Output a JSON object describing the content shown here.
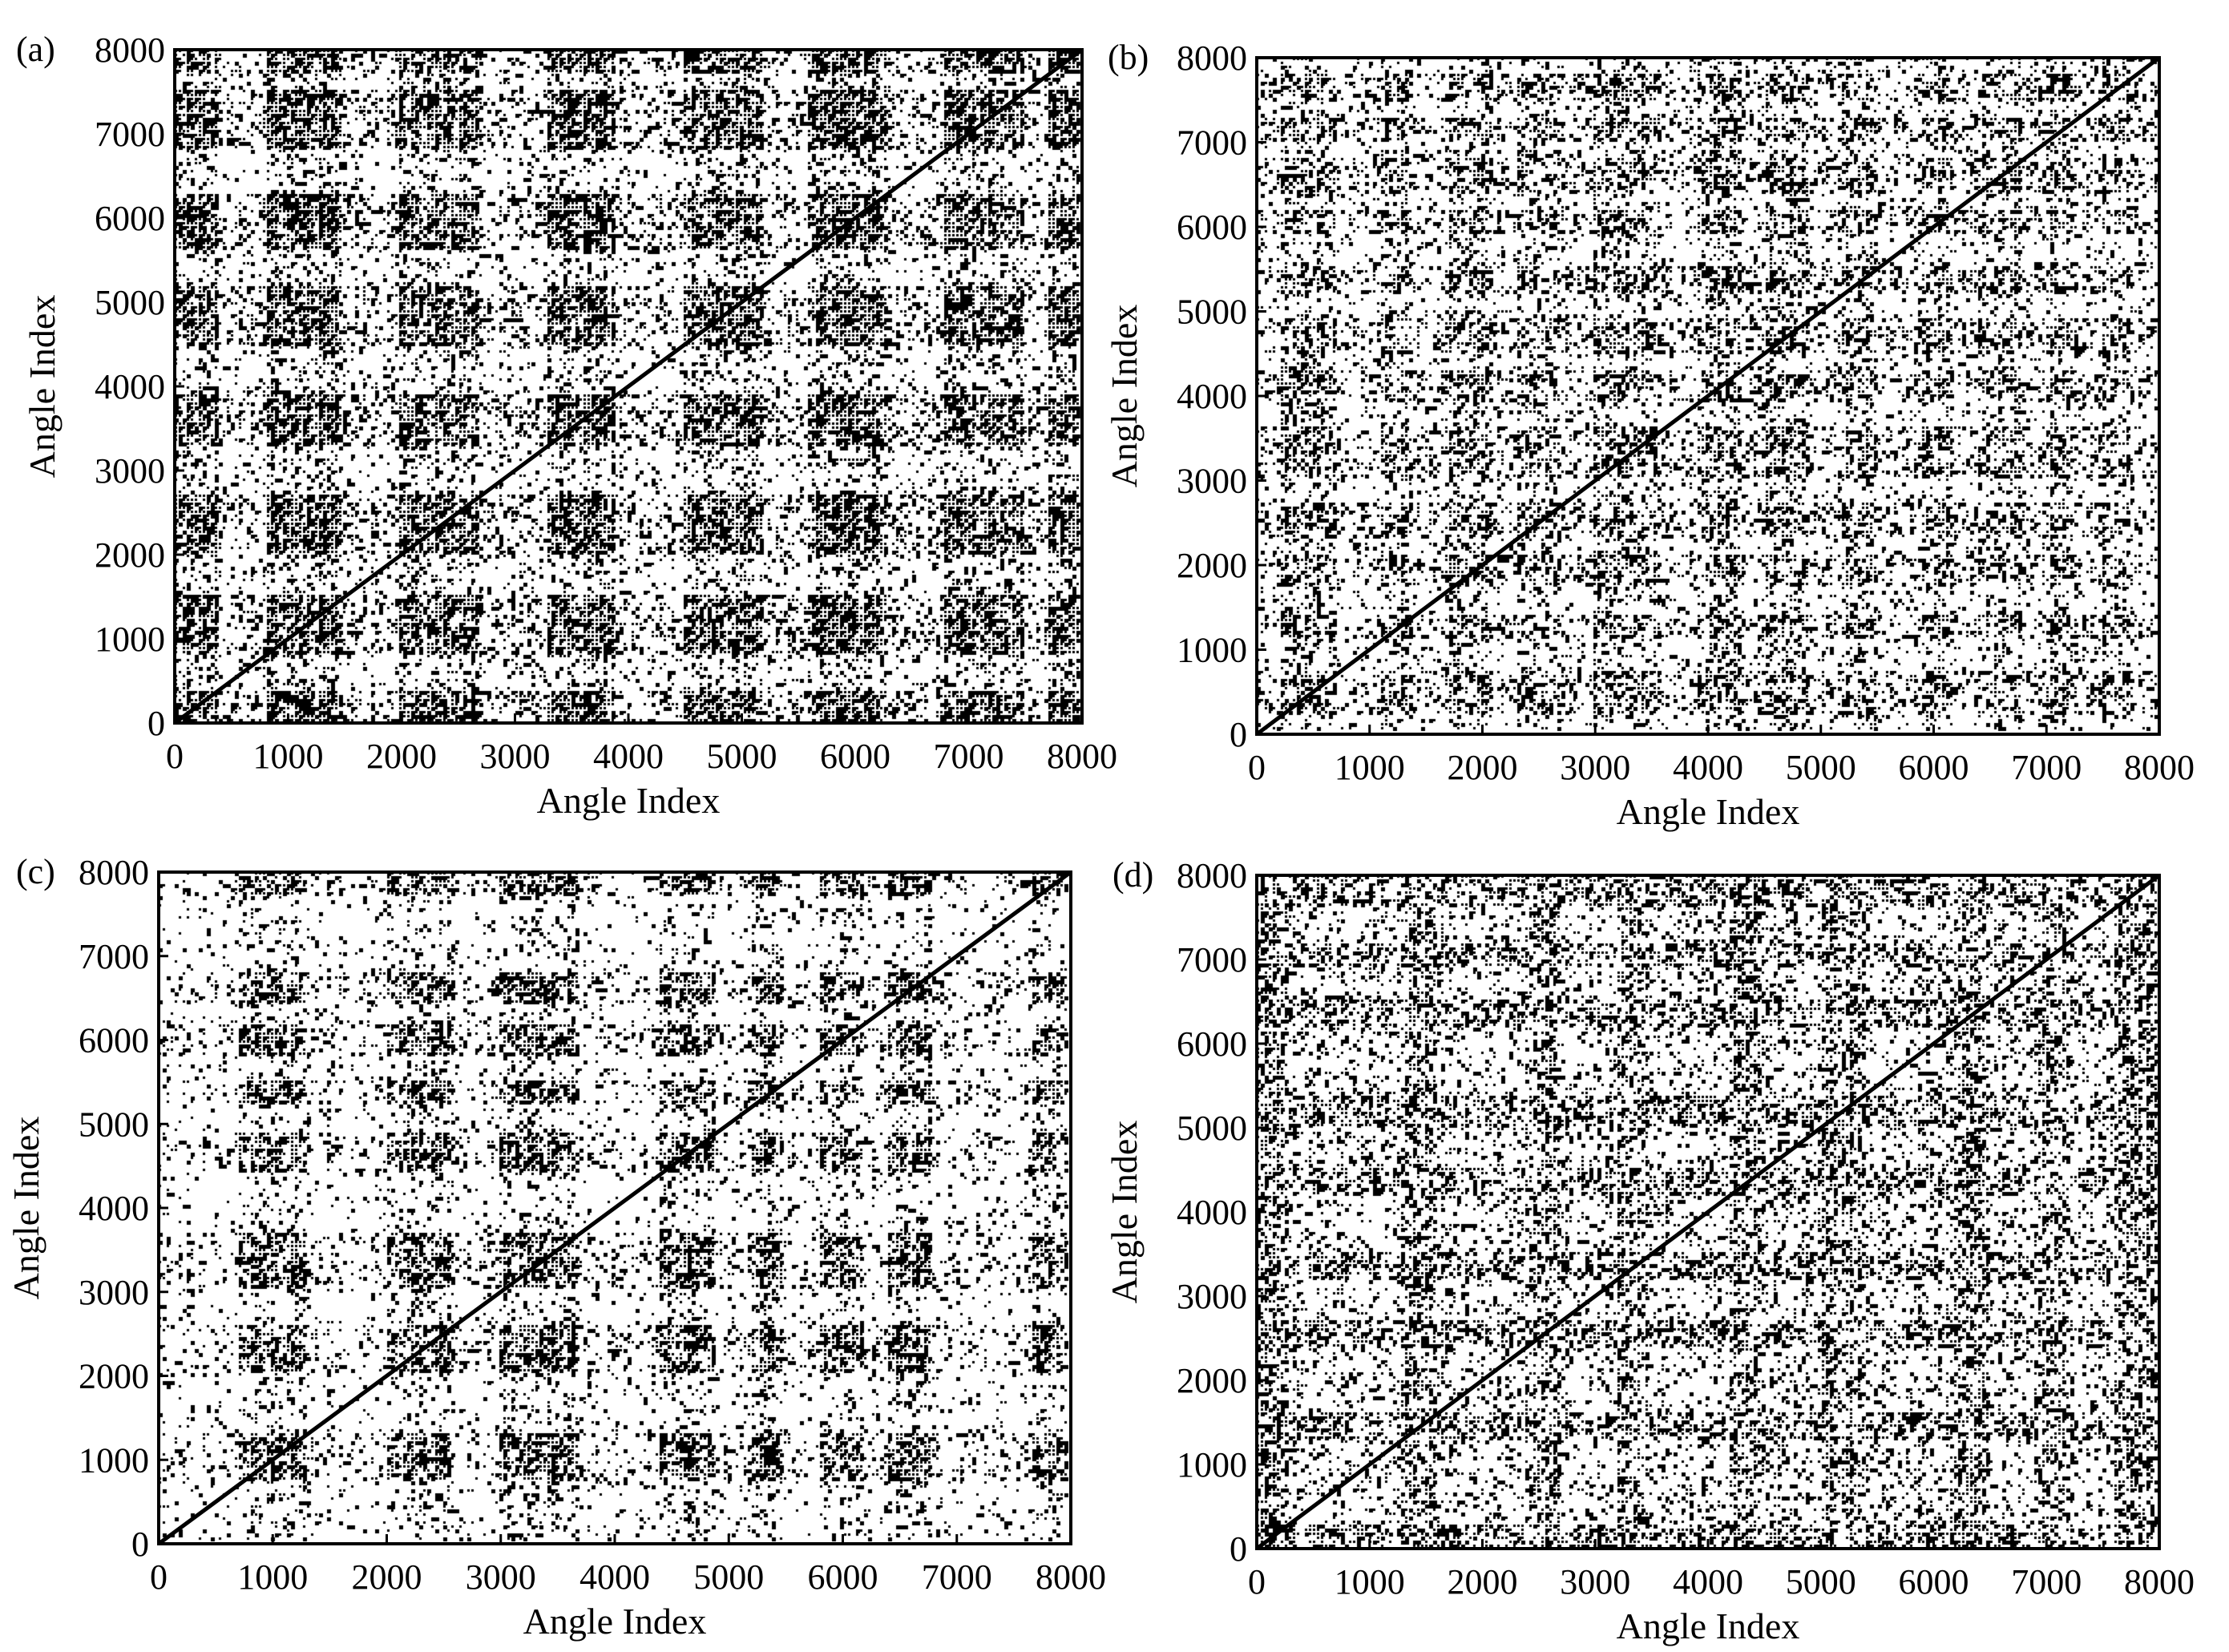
{
  "colors": {
    "background": "#ffffff",
    "marks": "#000000"
  },
  "chart_data": [
    {
      "type": "heatmap",
      "panel_label": "(a)",
      "xlabel": "Angle Index",
      "ylabel": "Angle Index",
      "xlim": [
        0,
        8000
      ],
      "ylim": [
        0,
        8000
      ],
      "xticks": [
        "0",
        "1000",
        "2000",
        "3000",
        "4000",
        "5000",
        "6000",
        "7000",
        "8000"
      ],
      "yticks": [
        "0",
        "1000",
        "2000",
        "3000",
        "4000",
        "5000",
        "6000",
        "7000",
        "8000"
      ],
      "diagonal": true,
      "dense_bands": [
        [
          0,
          400
        ],
        [
          800,
          1500
        ],
        [
          2000,
          2700
        ],
        [
          3300,
          3900
        ],
        [
          4500,
          5200
        ],
        [
          5600,
          6300
        ],
        [
          6800,
          7500
        ],
        [
          7700,
          8000
        ]
      ],
      "band_density": 0.85,
      "background_density": 0.2,
      "grid": false
    },
    {
      "type": "heatmap",
      "panel_label": "(b)",
      "xlabel": "Angle Index",
      "ylabel": "Angle Index",
      "xlim": [
        0,
        8000
      ],
      "ylim": [
        0,
        8000
      ],
      "xticks": [
        "0",
        "1000",
        "2000",
        "3000",
        "4000",
        "5000",
        "6000",
        "7000",
        "8000"
      ],
      "yticks": [
        "0",
        "1000",
        "2000",
        "3000",
        "4000",
        "5000",
        "6000",
        "7000",
        "8000"
      ],
      "diagonal": true,
      "dense_bands": [
        [
          200,
          700
        ],
        [
          1100,
          1400
        ],
        [
          1700,
          2100
        ],
        [
          2300,
          2700
        ],
        [
          3000,
          3600
        ],
        [
          3900,
          4300
        ],
        [
          4500,
          4900
        ],
        [
          5200,
          5500
        ],
        [
          5900,
          6200
        ],
        [
          6400,
          6800
        ],
        [
          7000,
          7300
        ],
        [
          7500,
          7800
        ]
      ],
      "band_density": 0.6,
      "background_density": 0.2,
      "grid": false
    },
    {
      "type": "heatmap",
      "panel_label": "(c)",
      "xlabel": "Angle Index",
      "ylabel": "Angle Index",
      "xlim": [
        0,
        8000
      ],
      "ylim": [
        0,
        8000
      ],
      "xticks": [
        "0",
        "1000",
        "2000",
        "3000",
        "4000",
        "5000",
        "6000",
        "7000",
        "8000"
      ],
      "yticks": [
        "0",
        "1000",
        "2000",
        "3000",
        "4000",
        "5000",
        "6000",
        "7000",
        "8000"
      ],
      "diagonal": true,
      "dense_bands": [
        [
          700,
          1300
        ],
        [
          2000,
          2600
        ],
        [
          3000,
          3700
        ],
        [
          4400,
          4900
        ],
        [
          5200,
          5500
        ],
        [
          5800,
          6200
        ],
        [
          6400,
          6800
        ],
        [
          7700,
          8000
        ]
      ],
      "band_density": 0.75,
      "background_density": 0.14,
      "grid": false
    },
    {
      "type": "heatmap",
      "panel_label": "(d)",
      "xlabel": "Angle Index",
      "ylabel": "Angle Index",
      "xlim": [
        0,
        8000
      ],
      "ylim": [
        0,
        8000
      ],
      "xticks": [
        "0",
        "1000",
        "2000",
        "3000",
        "4000",
        "5000",
        "6000",
        "7000",
        "8000"
      ],
      "yticks": [
        "0",
        "1000",
        "2000",
        "3000",
        "4000",
        "5000",
        "6000",
        "7000",
        "8000"
      ],
      "diagonal": true,
      "dense_bands": [
        [
          0,
          300
        ],
        [
          1300,
          1600
        ],
        [
          2400,
          2700
        ],
        [
          3200,
          3500
        ],
        [
          4200,
          4500
        ],
        [
          5000,
          5400
        ],
        [
          6200,
          6500
        ],
        [
          6900,
          7200
        ],
        [
          7600,
          8000
        ]
      ],
      "band_density": 0.55,
      "background_density": 0.33,
      "grid": false
    }
  ]
}
